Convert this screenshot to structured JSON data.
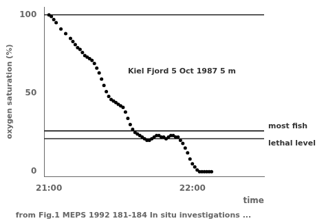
{
  "chart_data": {
    "type": "scatter",
    "ylabel": "oxygen saturation (%)",
    "xlabel": "time",
    "caption": "from Fig.1 MEPS 1992 181-184 In situ investigations ...",
    "annotations": [
      {
        "text": "Kiel Fjord 5 Oct 1987 5 m",
        "x": 33,
        "y": 64
      }
    ],
    "hlines": [
      {
        "value": 26,
        "label": "most fish"
      },
      {
        "value": 21,
        "label": "lethal level"
      },
      {
        "value": 100
      }
    ],
    "color": "#000000",
    "marker": "circle",
    "x": [
      0,
      1,
      2,
      3,
      5,
      7,
      9,
      10,
      11,
      12,
      13,
      14,
      15,
      16,
      17,
      18,
      19,
      20,
      21,
      22,
      23,
      24,
      25,
      26,
      27,
      28,
      29,
      30,
      31,
      32,
      33,
      34,
      35,
      36,
      37,
      38,
      39,
      40,
      41,
      42,
      43,
      44,
      45,
      46,
      47,
      48,
      49,
      50,
      51,
      52,
      53,
      54,
      55,
      56,
      57,
      58,
      59,
      60,
      61,
      62,
      63,
      64,
      65,
      66,
      67,
      68
    ],
    "values": [
      100,
      99,
      97,
      95,
      91,
      88,
      85,
      83,
      81,
      79,
      78,
      76,
      74,
      73,
      72,
      71,
      69,
      66,
      63,
      59,
      55,
      51,
      48,
      46,
      45,
      44,
      43,
      42,
      41,
      38,
      34,
      30,
      27,
      25,
      24,
      23,
      22,
      21,
      20,
      20,
      21,
      22,
      23,
      23,
      22,
      22,
      21,
      22,
      23,
      23,
      22,
      22,
      20,
      18,
      15,
      12,
      8,
      5,
      3,
      1,
      0,
      0,
      0,
      0,
      0,
      0
    ],
    "xlim": [
      -2,
      90
    ],
    "xticks": [
      {
        "value": 0,
        "label": "21:00"
      },
      {
        "value": 60,
        "label": "22:00"
      }
    ],
    "ylim": [
      -3,
      105
    ],
    "yticks": [
      0,
      50,
      100
    ],
    "grid": false
  }
}
